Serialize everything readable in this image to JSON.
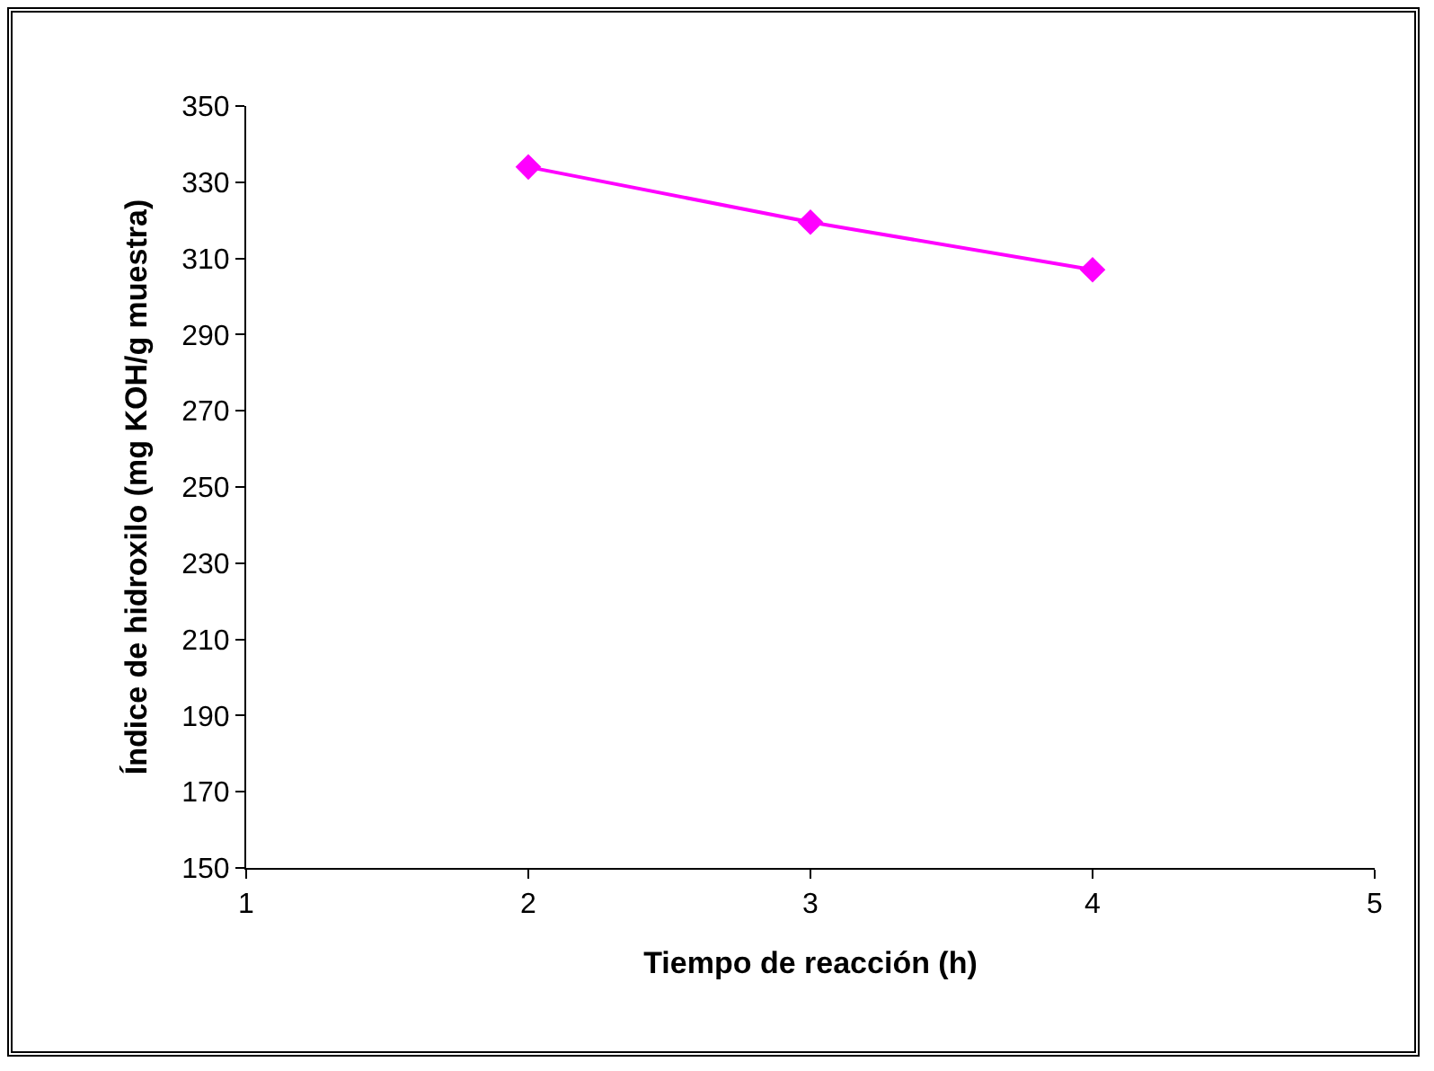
{
  "chart_data": {
    "type": "line",
    "xlabel": "Tiempo de reacción (h)",
    "ylabel": "Índice de hidroxilo (mg KOH/g muestra)",
    "x": [
      2,
      3,
      4
    ],
    "series": [
      {
        "color": "#ff00ff",
        "values": [
          334,
          319.5,
          307
        ]
      }
    ],
    "xlim": [
      1,
      5
    ],
    "xticks": [
      1,
      2,
      3,
      4,
      5
    ],
    "ylim": [
      150,
      350
    ],
    "yticks": [
      150,
      170,
      190,
      210,
      230,
      250,
      270,
      290,
      310,
      330,
      350
    ],
    "grid": false,
    "marker": "diamond",
    "line_style": "solid"
  }
}
